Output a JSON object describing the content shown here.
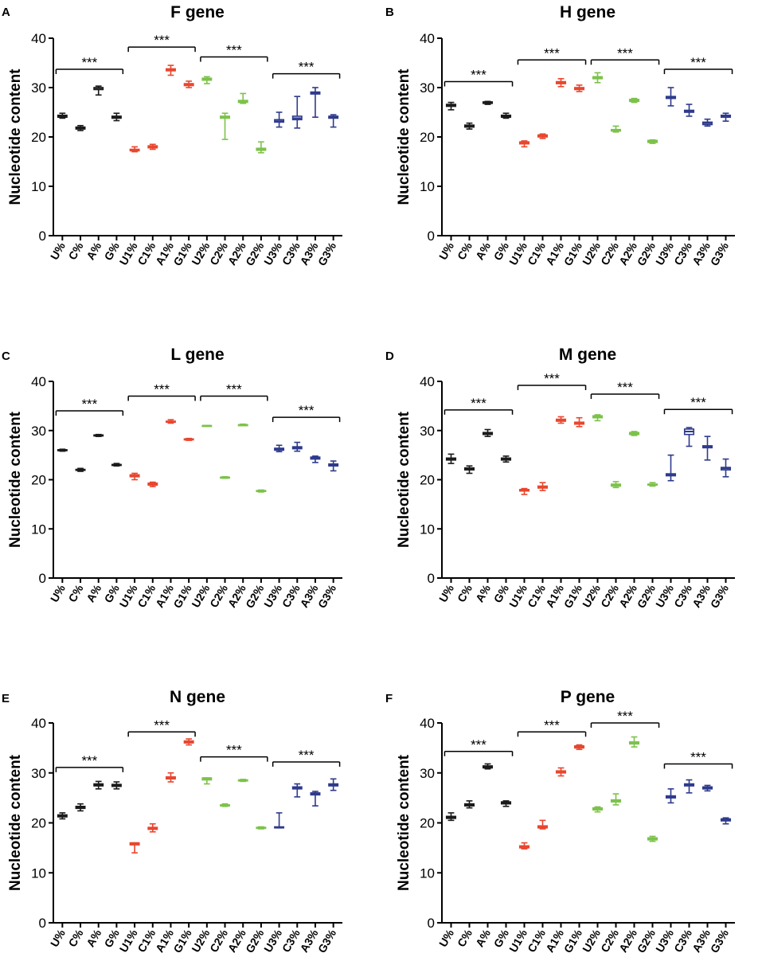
{
  "chart_data": [
    {
      "panel": "A",
      "title": "F gene",
      "type": "box",
      "ylabel": "Nucleotide content",
      "ylim": [
        0,
        40
      ],
      "yticks": [
        0,
        10,
        20,
        30,
        40
      ],
      "categories": [
        "U%",
        "C%",
        "A%",
        "G%",
        "U1%",
        "C1%",
        "A1%",
        "G1%",
        "U2%",
        "C2%",
        "A2%",
        "G2%",
        "U3%",
        "C3%",
        "A3%",
        "G3%"
      ],
      "boxes": [
        {
          "min": 23.8,
          "q1": 24.0,
          "median": 24.2,
          "q3": 24.4,
          "max": 24.8
        },
        {
          "min": 21.3,
          "q1": 21.6,
          "median": 21.8,
          "q3": 22.0,
          "max": 22.3
        },
        {
          "min": 28.5,
          "q1": 29.6,
          "median": 29.9,
          "q3": 30.0,
          "max": 30.3
        },
        {
          "min": 23.3,
          "q1": 23.8,
          "median": 24.0,
          "q3": 24.2,
          "max": 24.8
        },
        {
          "min": 17.0,
          "q1": 17.2,
          "median": 17.3,
          "q3": 17.5,
          "max": 18.0
        },
        {
          "min": 17.5,
          "q1": 17.8,
          "median": 18.0,
          "q3": 18.2,
          "max": 18.5
        },
        {
          "min": 32.5,
          "q1": 33.4,
          "median": 33.6,
          "q3": 33.8,
          "max": 34.5
        },
        {
          "min": 30.0,
          "q1": 30.4,
          "median": 30.6,
          "q3": 30.8,
          "max": 31.3
        },
        {
          "min": 30.8,
          "q1": 31.5,
          "median": 31.7,
          "q3": 31.9,
          "max": 32.2
        },
        {
          "min": 19.5,
          "q1": 23.8,
          "median": 24.0,
          "q3": 24.2,
          "max": 24.8
        },
        {
          "min": 26.8,
          "q1": 27.0,
          "median": 27.2,
          "q3": 27.4,
          "max": 28.8
        },
        {
          "min": 16.8,
          "q1": 17.3,
          "median": 17.5,
          "q3": 17.7,
          "max": 19.0
        },
        {
          "min": 22.0,
          "q1": 23.0,
          "median": 23.2,
          "q3": 23.5,
          "max": 25.0
        },
        {
          "min": 21.8,
          "q1": 23.5,
          "median": 23.8,
          "q3": 24.2,
          "max": 28.2
        },
        {
          "min": 24.0,
          "q1": 28.7,
          "median": 28.9,
          "q3": 29.1,
          "max": 30.0
        },
        {
          "min": 22.0,
          "q1": 23.8,
          "median": 24.0,
          "q3": 24.2,
          "max": 24.5
        }
      ],
      "brackets": [
        {
          "from": 0,
          "to": 3,
          "y": 33.7,
          "label": "***"
        },
        {
          "from": 4,
          "to": 7,
          "y": 38.2,
          "label": "***"
        },
        {
          "from": 8,
          "to": 11,
          "y": 36.2,
          "label": "***"
        },
        {
          "from": 12,
          "to": 15,
          "y": 32.8,
          "label": "***"
        }
      ]
    },
    {
      "panel": "B",
      "title": "H gene",
      "type": "box",
      "ylabel": "Nucleotide content",
      "ylim": [
        0,
        40
      ],
      "yticks": [
        0,
        10,
        20,
        30,
        40
      ],
      "categories": [
        "U%",
        "C%",
        "A%",
        "G%",
        "U1%",
        "C1%",
        "A1%",
        "G1%",
        "U2%",
        "C2%",
        "A2%",
        "G2%",
        "U3%",
        "C3%",
        "A3%",
        "G3%"
      ],
      "boxes": [
        {
          "min": 25.5,
          "q1": 26.2,
          "median": 26.4,
          "q3": 26.6,
          "max": 27.0
        },
        {
          "min": 21.6,
          "q1": 22.0,
          "median": 22.2,
          "q3": 22.4,
          "max": 22.8
        },
        {
          "min": 26.6,
          "q1": 26.8,
          "median": 27.0,
          "q3": 27.1,
          "max": 27.2
        },
        {
          "min": 23.8,
          "q1": 24.0,
          "median": 24.2,
          "q3": 24.4,
          "max": 24.8
        },
        {
          "min": 18.0,
          "q1": 18.6,
          "median": 18.8,
          "q3": 19.0,
          "max": 19.2
        },
        {
          "min": 19.7,
          "q1": 20.0,
          "median": 20.2,
          "q3": 20.4,
          "max": 20.6
        },
        {
          "min": 30.2,
          "q1": 30.8,
          "median": 31.0,
          "q3": 31.2,
          "max": 31.8
        },
        {
          "min": 29.2,
          "q1": 29.6,
          "median": 29.8,
          "q3": 30.0,
          "max": 30.5
        },
        {
          "min": 31.0,
          "q1": 31.8,
          "median": 32.0,
          "q3": 32.2,
          "max": 33.0
        },
        {
          "min": 21.0,
          "q1": 21.2,
          "median": 21.4,
          "q3": 21.5,
          "max": 22.2
        },
        {
          "min": 27.0,
          "q1": 27.2,
          "median": 27.4,
          "q3": 27.6,
          "max": 27.8
        },
        {
          "min": 18.7,
          "q1": 18.9,
          "median": 19.1,
          "q3": 19.3,
          "max": 19.4
        },
        {
          "min": 26.3,
          "q1": 27.8,
          "median": 28.0,
          "q3": 28.2,
          "max": 30.0
        },
        {
          "min": 24.2,
          "q1": 25.0,
          "median": 25.2,
          "q3": 25.4,
          "max": 26.6
        },
        {
          "min": 22.2,
          "q1": 22.5,
          "median": 22.8,
          "q3": 23.0,
          "max": 23.6
        },
        {
          "min": 23.2,
          "q1": 24.0,
          "median": 24.2,
          "q3": 24.4,
          "max": 24.8
        }
      ],
      "brackets": [
        {
          "from": 0,
          "to": 3,
          "y": 31.2,
          "label": "***"
        },
        {
          "from": 4,
          "to": 7,
          "y": 35.6,
          "label": "***"
        },
        {
          "from": 8,
          "to": 11,
          "y": 35.6,
          "label": "***"
        },
        {
          "from": 12,
          "to": 15,
          "y": 33.7,
          "label": "***"
        }
      ]
    },
    {
      "panel": "C",
      "title": "L gene",
      "type": "box",
      "ylabel": "Nucleotide content",
      "ylim": [
        0,
        40
      ],
      "yticks": [
        0,
        10,
        20,
        30,
        40
      ],
      "categories": [
        "U%",
        "C%",
        "A%",
        "G%",
        "U1%",
        "C1%",
        "A1%",
        "G1%",
        "U2%",
        "C2%",
        "A2%",
        "G2%",
        "U3%",
        "C3%",
        "A3%",
        "G3%"
      ],
      "boxes": [
        {
          "min": 25.8,
          "q1": 25.9,
          "median": 26.0,
          "q3": 26.1,
          "max": 26.2
        },
        {
          "min": 21.7,
          "q1": 21.9,
          "median": 22.0,
          "q3": 22.1,
          "max": 22.3
        },
        {
          "min": 28.8,
          "q1": 28.9,
          "median": 29.0,
          "q3": 29.1,
          "max": 29.2
        },
        {
          "min": 22.8,
          "q1": 22.9,
          "median": 23.0,
          "q3": 23.1,
          "max": 23.3
        },
        {
          "min": 20.0,
          "q1": 20.6,
          "median": 20.8,
          "q3": 21.0,
          "max": 21.3
        },
        {
          "min": 18.6,
          "q1": 18.9,
          "median": 19.1,
          "q3": 19.3,
          "max": 19.5
        },
        {
          "min": 31.5,
          "q1": 31.7,
          "median": 31.8,
          "q3": 31.9,
          "max": 32.2
        },
        {
          "min": 28.0,
          "q1": 28.1,
          "median": 28.2,
          "q3": 28.3,
          "max": 28.4
        },
        {
          "min": 30.9,
          "q1": 30.9,
          "median": 31.0,
          "q3": 31.0,
          "max": 31.0
        },
        {
          "min": 20.3,
          "q1": 20.4,
          "median": 20.5,
          "q3": 20.5,
          "max": 20.6
        },
        {
          "min": 31.0,
          "q1": 31.0,
          "median": 31.1,
          "q3": 31.2,
          "max": 31.3
        },
        {
          "min": 17.5,
          "q1": 17.6,
          "median": 17.7,
          "q3": 17.8,
          "max": 17.9
        },
        {
          "min": 25.7,
          "q1": 26.0,
          "median": 26.2,
          "q3": 26.4,
          "max": 27.0
        },
        {
          "min": 25.8,
          "q1": 26.3,
          "median": 26.5,
          "q3": 26.7,
          "max": 27.6
        },
        {
          "min": 23.5,
          "q1": 24.2,
          "median": 24.4,
          "q3": 24.6,
          "max": 24.8
        },
        {
          "min": 21.8,
          "q1": 22.8,
          "median": 23.0,
          "q3": 23.2,
          "max": 23.8
        }
      ],
      "brackets": [
        {
          "from": 0,
          "to": 3,
          "y": 34.0,
          "label": "***"
        },
        {
          "from": 4,
          "to": 7,
          "y": 37.0,
          "label": "***"
        },
        {
          "from": 8,
          "to": 11,
          "y": 37.0,
          "label": "***"
        },
        {
          "from": 12,
          "to": 15,
          "y": 32.7,
          "label": "***"
        }
      ]
    },
    {
      "panel": "D",
      "title": "M gene",
      "type": "box",
      "ylabel": "Nucleotide content",
      "ylim": [
        0,
        40
      ],
      "yticks": [
        0,
        10,
        20,
        30,
        40
      ],
      "categories": [
        "U%",
        "C%",
        "A%",
        "G%",
        "U1%",
        "C1%",
        "A1%",
        "G1%",
        "U2%",
        "C2%",
        "A2%",
        "G2%",
        "U3%",
        "C3%",
        "A3%",
        "G3%"
      ],
      "boxes": [
        {
          "min": 23.3,
          "q1": 24.0,
          "median": 24.2,
          "q3": 24.4,
          "max": 25.2
        },
        {
          "min": 21.3,
          "q1": 22.0,
          "median": 22.2,
          "q3": 22.4,
          "max": 22.8
        },
        {
          "min": 28.8,
          "q1": 29.2,
          "median": 29.4,
          "q3": 29.6,
          "max": 30.2
        },
        {
          "min": 23.6,
          "q1": 24.0,
          "median": 24.2,
          "q3": 24.4,
          "max": 24.8
        },
        {
          "min": 17.0,
          "q1": 17.7,
          "median": 17.9,
          "q3": 18.0,
          "max": 18.2
        },
        {
          "min": 17.8,
          "q1": 18.3,
          "median": 18.5,
          "q3": 18.7,
          "max": 19.4
        },
        {
          "min": 31.5,
          "q1": 31.9,
          "median": 32.1,
          "q3": 32.3,
          "max": 32.8
        },
        {
          "min": 30.8,
          "q1": 31.3,
          "median": 31.5,
          "q3": 31.7,
          "max": 32.6
        },
        {
          "min": 32.0,
          "q1": 32.6,
          "median": 32.8,
          "q3": 33.0,
          "max": 33.2
        },
        {
          "min": 18.4,
          "q1": 18.7,
          "median": 18.9,
          "q3": 19.1,
          "max": 19.6
        },
        {
          "min": 29.0,
          "q1": 29.2,
          "median": 29.4,
          "q3": 29.6,
          "max": 29.8
        },
        {
          "min": 18.7,
          "q1": 18.9,
          "median": 19.0,
          "q3": 19.1,
          "max": 19.4
        },
        {
          "min": 19.8,
          "q1": 20.8,
          "median": 21.0,
          "q3": 21.2,
          "max": 25.0
        },
        {
          "min": 26.8,
          "q1": 29.2,
          "median": 29.8,
          "q3": 30.3,
          "max": 30.6
        },
        {
          "min": 24.0,
          "q1": 26.5,
          "median": 26.7,
          "q3": 26.9,
          "max": 28.8
        },
        {
          "min": 20.6,
          "q1": 22.0,
          "median": 22.3,
          "q3": 22.5,
          "max": 24.2
        }
      ],
      "brackets": [
        {
          "from": 0,
          "to": 3,
          "y": 34.2,
          "label": "***"
        },
        {
          "from": 4,
          "to": 7,
          "y": 39.2,
          "label": "***"
        },
        {
          "from": 8,
          "to": 11,
          "y": 37.4,
          "label": "***"
        },
        {
          "from": 12,
          "to": 15,
          "y": 34.3,
          "label": "***"
        }
      ]
    },
    {
      "panel": "E",
      "title": "N gene",
      "type": "box",
      "ylabel": "Nucleotide content",
      "ylim": [
        0,
        40
      ],
      "yticks": [
        0,
        10,
        20,
        30,
        40
      ],
      "categories": [
        "U%",
        "C%",
        "A%",
        "G%",
        "U1%",
        "C1%",
        "A1%",
        "G1%",
        "U2%",
        "C2%",
        "A2%",
        "G2%",
        "U3%",
        "C3%",
        "A3%",
        "G3%"
      ],
      "boxes": [
        {
          "min": 20.8,
          "q1": 21.2,
          "median": 21.4,
          "q3": 21.6,
          "max": 22.0
        },
        {
          "min": 22.4,
          "q1": 22.9,
          "median": 23.1,
          "q3": 23.3,
          "max": 23.8
        },
        {
          "min": 26.8,
          "q1": 27.4,
          "median": 27.6,
          "q3": 27.8,
          "max": 28.3
        },
        {
          "min": 26.8,
          "q1": 27.3,
          "median": 27.5,
          "q3": 27.7,
          "max": 28.2
        },
        {
          "min": 14.0,
          "q1": 15.6,
          "median": 15.8,
          "q3": 16.0,
          "max": 16.0
        },
        {
          "min": 18.2,
          "q1": 18.7,
          "median": 18.9,
          "q3": 19.1,
          "max": 19.8
        },
        {
          "min": 28.2,
          "q1": 28.8,
          "median": 29.0,
          "q3": 29.2,
          "max": 30.0
        },
        {
          "min": 35.6,
          "q1": 36.0,
          "median": 36.2,
          "q3": 36.4,
          "max": 36.8
        },
        {
          "min": 27.8,
          "q1": 28.6,
          "median": 28.8,
          "q3": 29.0,
          "max": 29.0
        },
        {
          "min": 23.3,
          "q1": 23.4,
          "median": 23.5,
          "q3": 23.6,
          "max": 23.8
        },
        {
          "min": 28.3,
          "q1": 28.4,
          "median": 28.5,
          "q3": 28.6,
          "max": 28.7
        },
        {
          "min": 18.8,
          "q1": 18.9,
          "median": 19.0,
          "q3": 19.1,
          "max": 19.2
        },
        {
          "min": 19.0,
          "q1": 19.0,
          "median": 19.1,
          "q3": 19.2,
          "max": 22.0
        },
        {
          "min": 25.2,
          "q1": 26.8,
          "median": 27.0,
          "q3": 27.2,
          "max": 27.8
        },
        {
          "min": 23.4,
          "q1": 25.6,
          "median": 25.8,
          "q3": 26.0,
          "max": 26.3
        },
        {
          "min": 26.5,
          "q1": 27.4,
          "median": 27.6,
          "q3": 27.8,
          "max": 28.8
        }
      ],
      "brackets": [
        {
          "from": 0,
          "to": 3,
          "y": 31.1,
          "label": "***"
        },
        {
          "from": 4,
          "to": 7,
          "y": 38.2,
          "label": "***"
        },
        {
          "from": 8,
          "to": 11,
          "y": 33.2,
          "label": "***"
        },
        {
          "from": 12,
          "to": 15,
          "y": 32.2,
          "label": "***"
        }
      ]
    },
    {
      "panel": "F",
      "title": "P gene",
      "type": "box",
      "ylabel": "Nucleotide content",
      "ylim": [
        0,
        40
      ],
      "yticks": [
        0,
        10,
        20,
        30,
        40
      ],
      "categories": [
        "U%",
        "C%",
        "A%",
        "G%",
        "U1%",
        "C1%",
        "A1%",
        "G1%",
        "U2%",
        "C2%",
        "A2%",
        "G2%",
        "U3%",
        "C3%",
        "A3%",
        "G3%"
      ],
      "boxes": [
        {
          "min": 20.5,
          "q1": 20.9,
          "median": 21.1,
          "q3": 21.3,
          "max": 22.0
        },
        {
          "min": 23.0,
          "q1": 23.4,
          "median": 23.6,
          "q3": 23.8,
          "max": 24.4
        },
        {
          "min": 30.8,
          "q1": 31.0,
          "median": 31.2,
          "q3": 31.4,
          "max": 31.8
        },
        {
          "min": 23.3,
          "q1": 23.8,
          "median": 24.0,
          "q3": 24.2,
          "max": 24.4
        },
        {
          "min": 14.8,
          "q1": 15.0,
          "median": 15.2,
          "q3": 15.4,
          "max": 16.0
        },
        {
          "min": 18.8,
          "q1": 19.0,
          "median": 19.2,
          "q3": 19.4,
          "max": 20.5
        },
        {
          "min": 29.4,
          "q1": 30.0,
          "median": 30.2,
          "q3": 30.4,
          "max": 31.0
        },
        {
          "min": 34.7,
          "q1": 35.0,
          "median": 35.2,
          "q3": 35.4,
          "max": 35.6
        },
        {
          "min": 22.2,
          "q1": 22.6,
          "median": 22.8,
          "q3": 23.0,
          "max": 23.2
        },
        {
          "min": 23.6,
          "q1": 24.2,
          "median": 24.4,
          "q3": 24.6,
          "max": 25.8
        },
        {
          "min": 35.2,
          "q1": 35.8,
          "median": 36.0,
          "q3": 36.2,
          "max": 37.2
        },
        {
          "min": 16.3,
          "q1": 16.6,
          "median": 16.8,
          "q3": 17.0,
          "max": 17.3
        },
        {
          "min": 24.0,
          "q1": 25.0,
          "median": 25.2,
          "q3": 25.4,
          "max": 26.8
        },
        {
          "min": 26.0,
          "q1": 27.4,
          "median": 27.6,
          "q3": 27.8,
          "max": 28.6
        },
        {
          "min": 26.4,
          "q1": 26.8,
          "median": 27.0,
          "q3": 27.2,
          "max": 27.5
        },
        {
          "min": 19.8,
          "q1": 20.4,
          "median": 20.6,
          "q3": 20.8,
          "max": 21.0
        }
      ],
      "brackets": [
        {
          "from": 0,
          "to": 3,
          "y": 34.3,
          "label": "***"
        },
        {
          "from": 4,
          "to": 7,
          "y": 38.2,
          "label": "***"
        },
        {
          "from": 8,
          "to": 11,
          "y": 40.0,
          "label": "***"
        },
        {
          "from": 12,
          "to": 15,
          "y": 31.8,
          "label": "***"
        }
      ]
    }
  ],
  "colors": {
    "group0": "#1a1a1a",
    "group1": "#e8462e",
    "group2": "#7cc24a",
    "group3": "#2e3a8c",
    "axis": "#000000"
  }
}
